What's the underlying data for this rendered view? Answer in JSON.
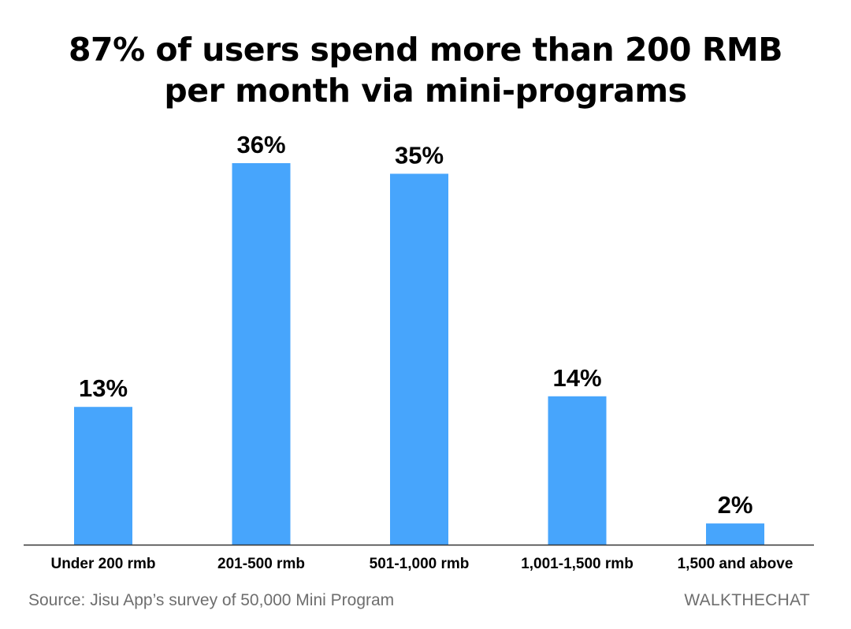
{
  "title": {
    "line1": "87% of users spend more than 200 RMB",
    "line2": "per month via mini-programs"
  },
  "footer": {
    "source": "Source: Jisu App’s survey of 50,000 Mini Program",
    "brand": "WALKTHECHAT"
  },
  "colors": {
    "bar": "#47a5fc",
    "axis": "#333333",
    "text": "#000000",
    "footer_text": "#6e6e6e"
  },
  "chart_data": {
    "type": "bar",
    "title": "87% of users spend more than 200 RMB per month via mini-programs",
    "categories": [
      "Under 200 rmb",
      "201-500 rmb",
      "501-1,000 rmb",
      "1,001-1,500 rmb",
      "1,500 and above"
    ],
    "values": [
      13,
      36,
      35,
      14,
      2
    ],
    "value_labels": [
      "13%",
      "36%",
      "35%",
      "14%",
      "2%"
    ],
    "unit": "%",
    "ylim": [
      0,
      36
    ],
    "grid": false,
    "legend": "none"
  }
}
